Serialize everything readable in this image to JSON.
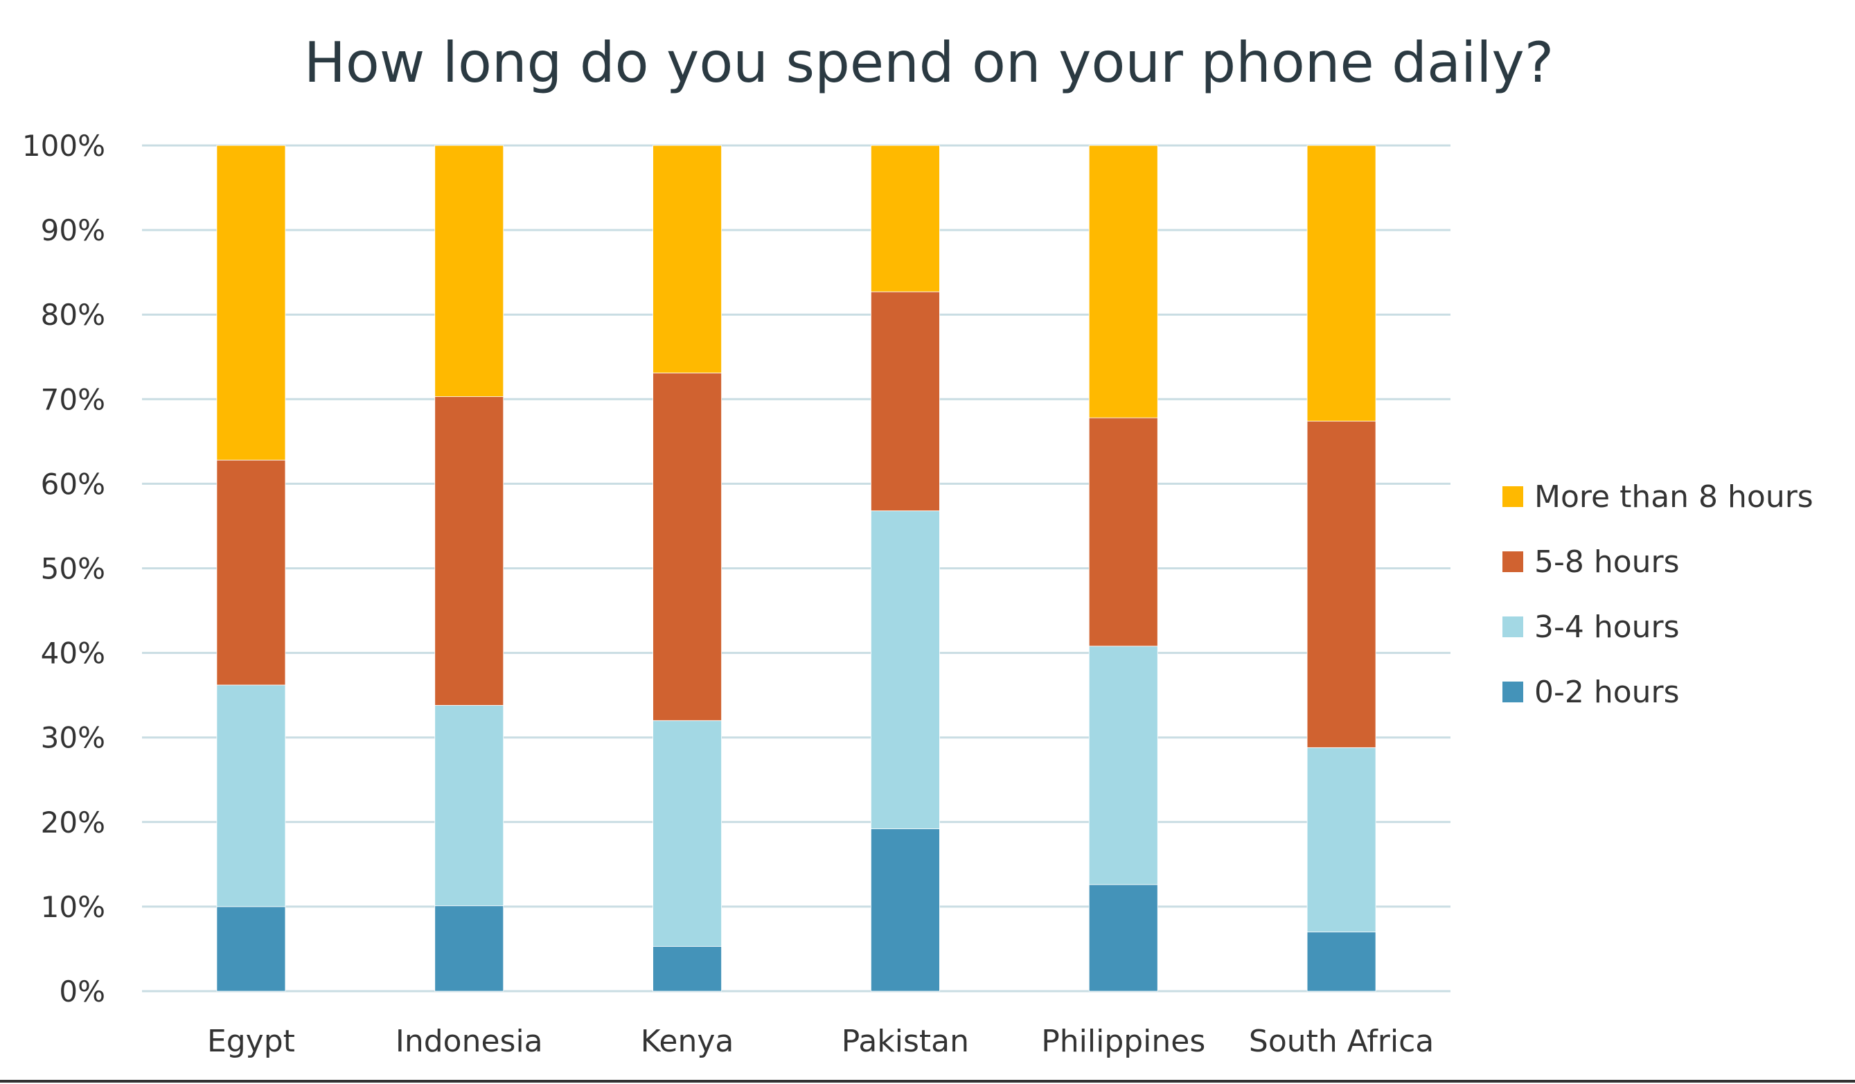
{
  "chart_data": {
    "type": "bar",
    "stacked": true,
    "normalized": true,
    "title": "How long do you spend on your phone daily?",
    "xlabel": "",
    "ylabel": "",
    "ylim": [
      0,
      100
    ],
    "yticks": [
      "0%",
      "10%",
      "20%",
      "30%",
      "40%",
      "50%",
      "60%",
      "70%",
      "80%",
      "90%",
      "100%"
    ],
    "grid": true,
    "legend_position": "right",
    "categories": [
      "Egypt",
      "Indonesia",
      "Kenya",
      "Pakistan",
      "Philippines",
      "South Africa"
    ],
    "series": [
      {
        "name": "0-2 hours",
        "color": "#4493B9",
        "values": [
          10.0,
          10.1,
          5.3,
          19.2,
          12.6,
          7.0
        ]
      },
      {
        "name": "3-4 hours",
        "color": "#A3D8E4",
        "values": [
          26.2,
          23.7,
          26.7,
          37.6,
          28.2,
          21.8
        ]
      },
      {
        "name": "5-8 hours",
        "color": "#D06230",
        "values": [
          26.6,
          36.5,
          41.1,
          25.9,
          27.0,
          38.6
        ]
      },
      {
        "name": "More than 8 hours",
        "color": "#FFB900",
        "values": [
          37.2,
          29.7,
          26.9,
          17.3,
          32.2,
          32.6
        ]
      }
    ]
  }
}
